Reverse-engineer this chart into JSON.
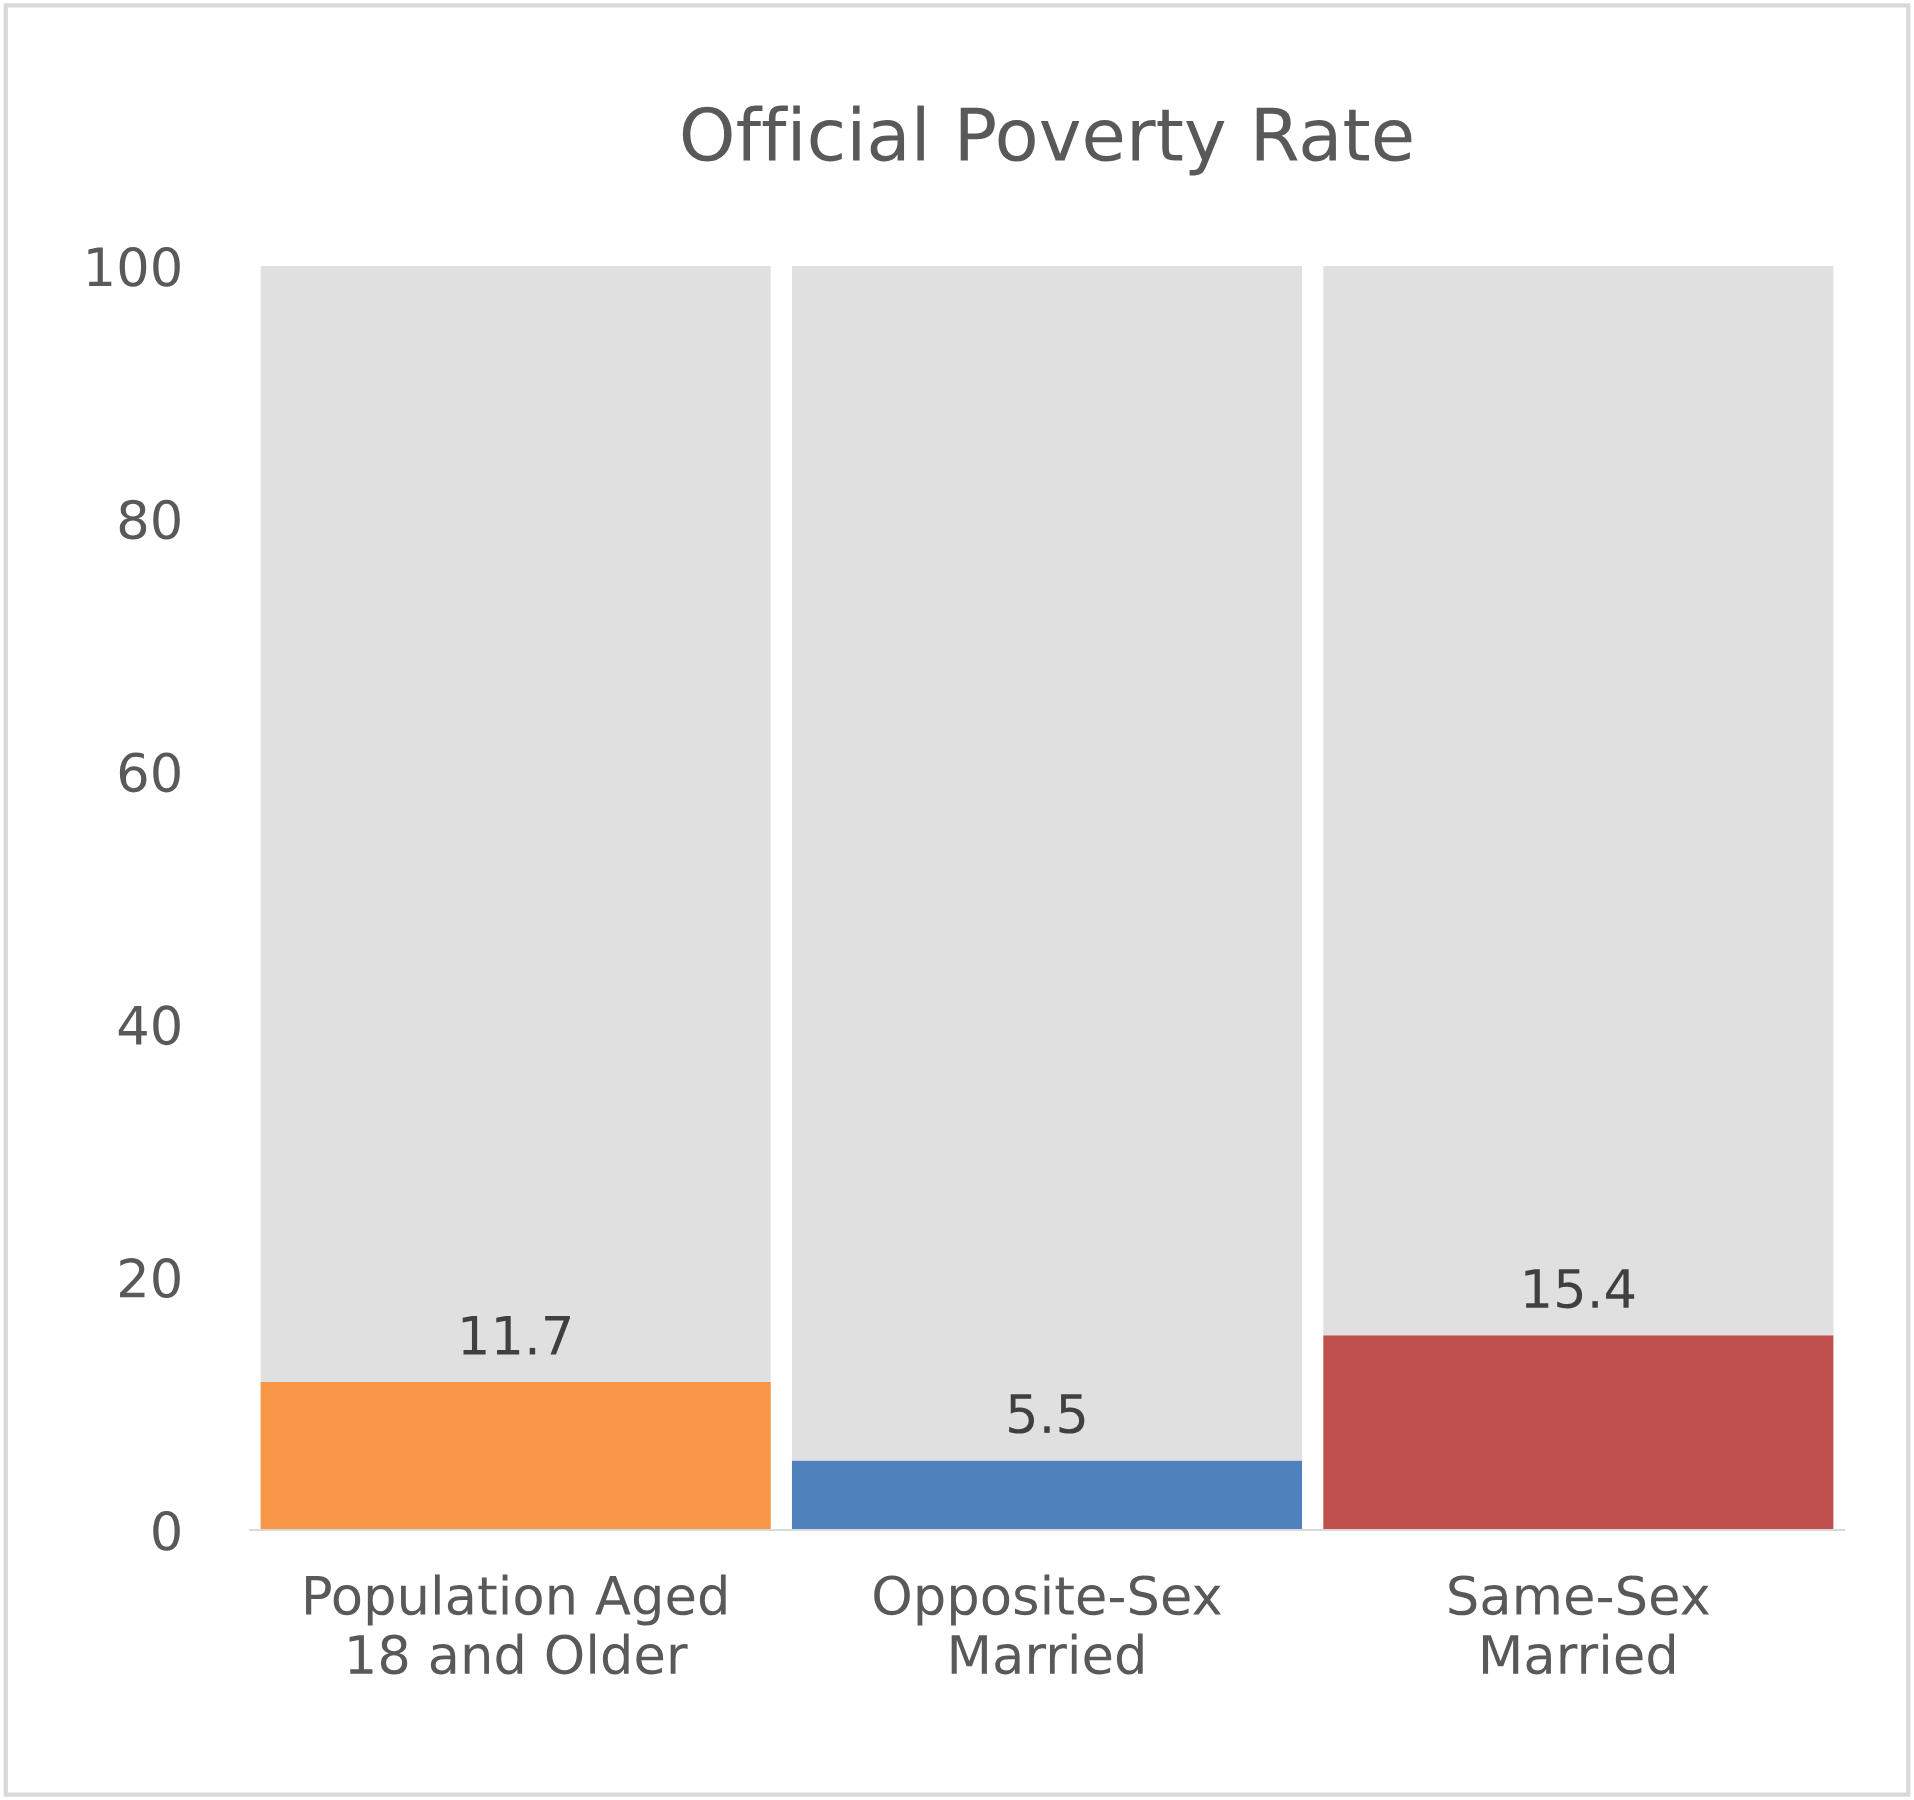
{
  "chart_data": {
    "type": "bar",
    "title": "Official Poverty Rate",
    "categories": [
      "Population Aged\n18 and Older",
      "Opposite-Sex\nMarried",
      "Same-Sex\nMarried"
    ],
    "stacked": true,
    "series": [
      {
        "colors": [
          "#f79646",
          "#4f81bd",
          "#c0504d"
        ],
        "values": [
          11.7,
          5.5,
          15.4
        ],
        "value_labels": [
          "11.7",
          "5.5",
          "15.4"
        ]
      },
      {
        "color": "#e0e0e0",
        "values": [
          88.3,
          94.5,
          84.6
        ]
      }
    ],
    "ylim": [
      0,
      100
    ],
    "yticks": [
      0,
      20,
      40,
      60,
      80,
      100
    ],
    "grid": false,
    "legend": false
  }
}
